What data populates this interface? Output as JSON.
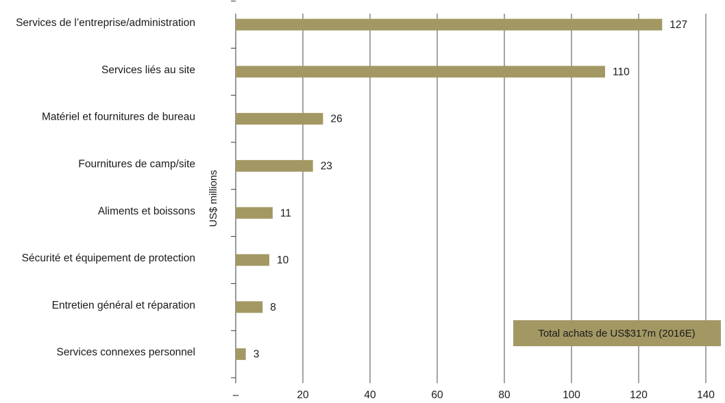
{
  "chart_data": {
    "type": "bar",
    "orientation": "horizontal",
    "categories": [
      "Services de l’entreprise/administration",
      "Services liés au site",
      "Matériel et fournitures de bureau",
      "Fournitures de camp/site",
      "Aliments et boissons",
      "Sécurité et équipement de protection",
      "Entretien général et réparation",
      "Services connexes personnel"
    ],
    "values": [
      127,
      110,
      26,
      23,
      11,
      10,
      8,
      3
    ],
    "value_labels": [
      "127",
      "110",
      "26",
      "23",
      "11",
      "10",
      "8",
      "3"
    ],
    "ylabel": "US$ millions",
    "xlim": [
      0,
      140
    ],
    "x_ticks": [
      0,
      20,
      40,
      60,
      80,
      100,
      120,
      140
    ],
    "x_tick_labels": [
      "–",
      "20",
      "40",
      "60",
      "80",
      "100",
      "120",
      "140"
    ],
    "grid": "vertical",
    "bar_color": "#a39863",
    "annotation": "Total achats  de US$317m (2016E)",
    "annotation_position": "bottom-right"
  }
}
